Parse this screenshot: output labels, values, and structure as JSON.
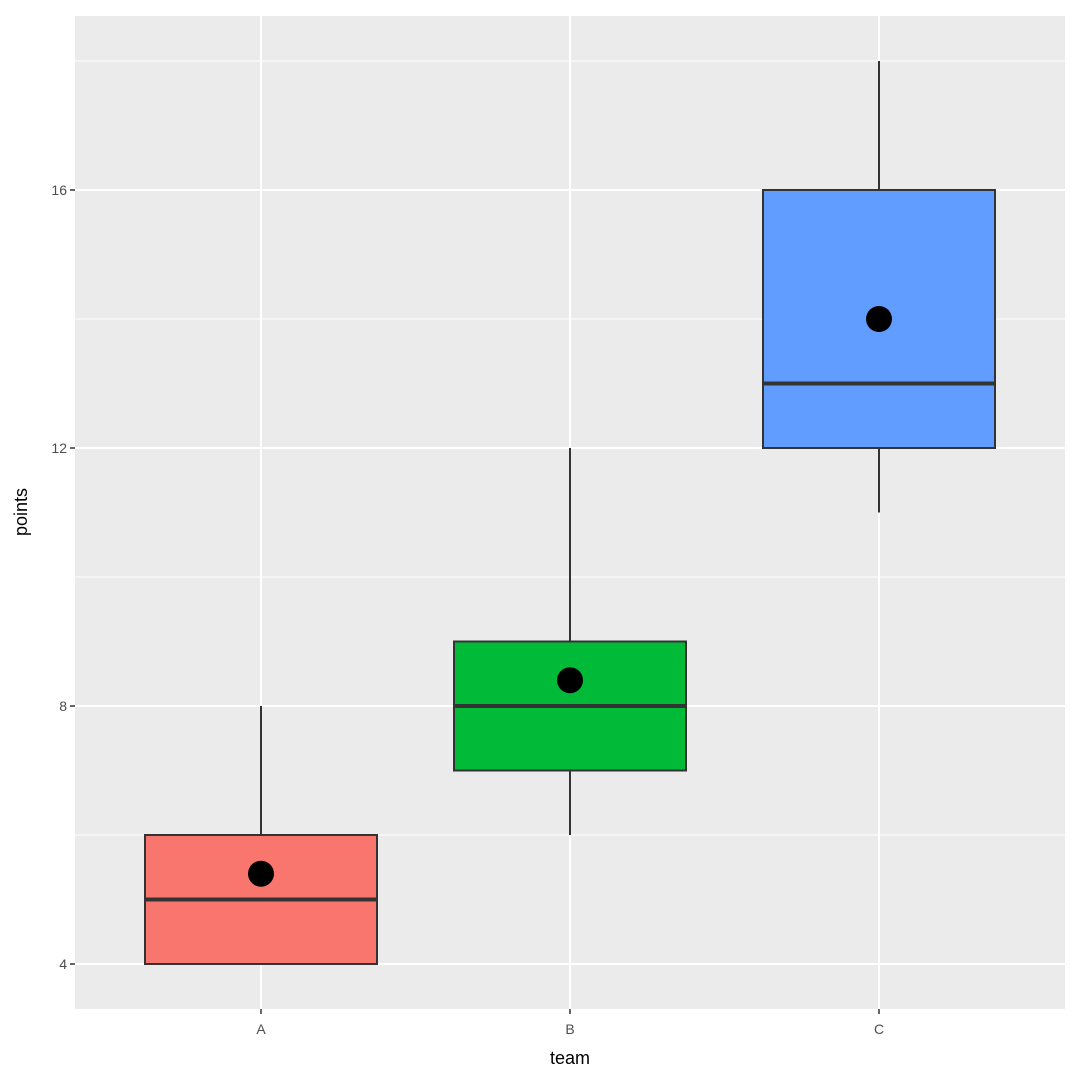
{
  "chart_data": {
    "type": "boxplot",
    "title": "",
    "xlabel": "team",
    "ylabel": "points",
    "categories": [
      "A",
      "B",
      "C"
    ],
    "series": [
      {
        "name": "A",
        "fill": "#F8766D",
        "whisker_low": 4,
        "q1": 4,
        "median": 5,
        "q3": 6,
        "whisker_high": 8,
        "mean": 5.4
      },
      {
        "name": "B",
        "fill": "#00BA38",
        "whisker_low": 6,
        "q1": 7,
        "median": 8,
        "q3": 9,
        "whisker_high": 12,
        "mean": 8.4
      },
      {
        "name": "C",
        "fill": "#619CFF",
        "whisker_low": 11,
        "q1": 12,
        "median": 13,
        "q3": 16,
        "whisker_high": 18,
        "mean": 14.0
      }
    ],
    "yticks": [
      4,
      8,
      12,
      16
    ],
    "ylim": [
      3.3,
      18.7
    ],
    "grid": true,
    "legend": "none",
    "panel_background": "#EBEBEB",
    "mean_marker_color": "#000000"
  },
  "axes": {
    "x_title": "team",
    "y_title": "points",
    "x_ticks": [
      "A",
      "B",
      "C"
    ],
    "y_ticks": [
      "4",
      "8",
      "12",
      "16"
    ]
  }
}
